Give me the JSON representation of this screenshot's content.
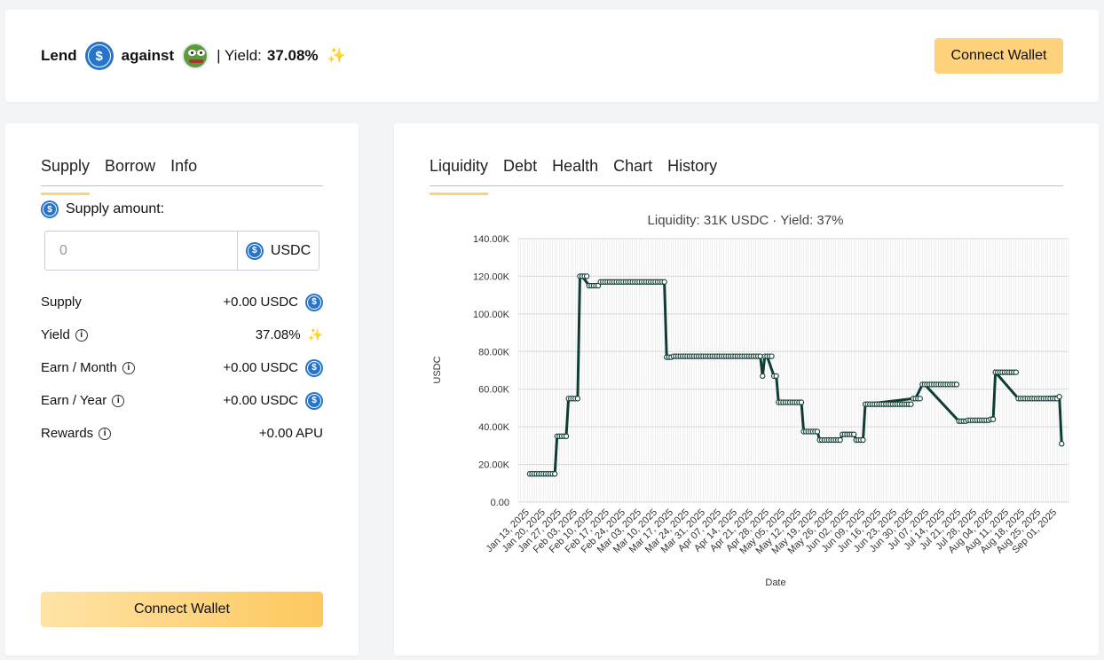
{
  "header": {
    "lend": "Lend",
    "against": "against",
    "separator": "| Yield:",
    "yield": "37.08%",
    "connect": "Connect Wallet"
  },
  "left": {
    "tabs": [
      "Supply",
      "Borrow",
      "Info"
    ],
    "supply_amount_label": "Supply amount:",
    "input_placeholder": "0",
    "input_unit": "USDC",
    "stats": {
      "supply_label": "Supply",
      "supply_value": "+0.00 USDC",
      "yield_label": "Yield",
      "yield_value": "37.08%",
      "month_label": "Earn / Month",
      "month_value": "+0.00 USDC",
      "year_label": "Earn / Year",
      "year_value": "+0.00 USDC",
      "rewards_label": "Rewards",
      "rewards_value": "+0.00 APU"
    },
    "connect": "Connect Wallet"
  },
  "right": {
    "tabs": [
      "Liquidity",
      "Debt",
      "Health",
      "Chart",
      "History"
    ]
  },
  "colors": {
    "accent": "#fdd27a",
    "usdc": "#2775ca",
    "line": "#0f3d35"
  },
  "chart_data": {
    "type": "line",
    "title": "Liquidity: 31K USDC · Yield: 37%",
    "xlabel": "Date",
    "ylabel": "USDC",
    "ylim": [
      0,
      140000
    ],
    "yticks": [
      "0.00",
      "20.00K",
      "40.00K",
      "60.00K",
      "80.00K",
      "100.00K",
      "120.00K",
      "140.00K"
    ],
    "xticks": [
      "Jan 13, 2025",
      "Jan 20, 2025",
      "Jan 27, 2025",
      "Feb 03, 2025",
      "Feb 10, 2025",
      "Feb 17, 2025",
      "Feb 24, 2025",
      "Mar 03, 2025",
      "Mar 10, 2025",
      "Mar 17, 2025",
      "Mar 24, 2025",
      "Mar 31, 2025",
      "Apr 07, 2025",
      "Apr 14, 2025",
      "Apr 21, 2025",
      "Apr 28, 2025",
      "May 05, 2025",
      "May 12, 2025",
      "May 19, 2025",
      "May 26, 2025",
      "Jun 02, 2025",
      "Jun 09, 2025",
      "Jun 16, 2025",
      "Jun 23, 2025",
      "Jun 30, 2025",
      "Jul 07, 2025",
      "Jul 14, 2025",
      "Jul 21, 2025",
      "Jul 28, 2025",
      "Aug 04, 2025",
      "Aug 11, 2025",
      "Aug 18, 2025",
      "Aug 25, 2025",
      "Sep 01, 2025"
    ],
    "grid": true,
    "legend": "none",
    "series": [
      {
        "x": [
          "2025-01-13",
          "2025-01-24",
          "2025-01-25",
          "2025-01-29",
          "2025-01-30",
          "2025-02-03",
          "2025-02-04",
          "2025-02-05",
          "2025-02-08",
          "2025-02-12",
          "2025-02-13",
          "2025-03-13",
          "2025-03-14",
          "2025-03-16",
          "2025-03-17",
          "2025-04-24",
          "2025-04-25",
          "2025-04-26",
          "2025-04-27",
          "2025-04-30",
          "2025-05-01",
          "2025-05-02",
          "2025-05-03",
          "2025-05-12",
          "2025-05-13",
          "2025-05-19",
          "2025-05-20",
          "2025-05-29",
          "2025-05-30",
          "2025-06-04",
          "2025-06-05",
          "2025-06-08",
          "2025-06-09",
          "2025-06-30",
          "2025-07-01",
          "2025-07-04",
          "2025-07-05",
          "2025-07-20",
          "2025-07-24",
          "2025-08-03",
          "2025-08-04",
          "2025-08-05",
          "2025-08-15",
          "2025-09-02",
          "2025-09-03"
        ],
        "y": [
          15000,
          15000,
          35000,
          35000,
          55000,
          55000,
          120000,
          120000,
          115000,
          115000,
          117000,
          117000,
          77000,
          77000,
          77500,
          77500,
          67000,
          77500,
          77500,
          67000,
          67000,
          53000,
          53000,
          53000,
          37500,
          37500,
          33000,
          33000,
          36000,
          36000,
          33000,
          33000,
          52000,
          55000,
          55000,
          62500,
          62500,
          43000,
          43500,
          44000,
          44000,
          69000,
          55000,
          56000,
          31000
        ]
      }
    ]
  }
}
